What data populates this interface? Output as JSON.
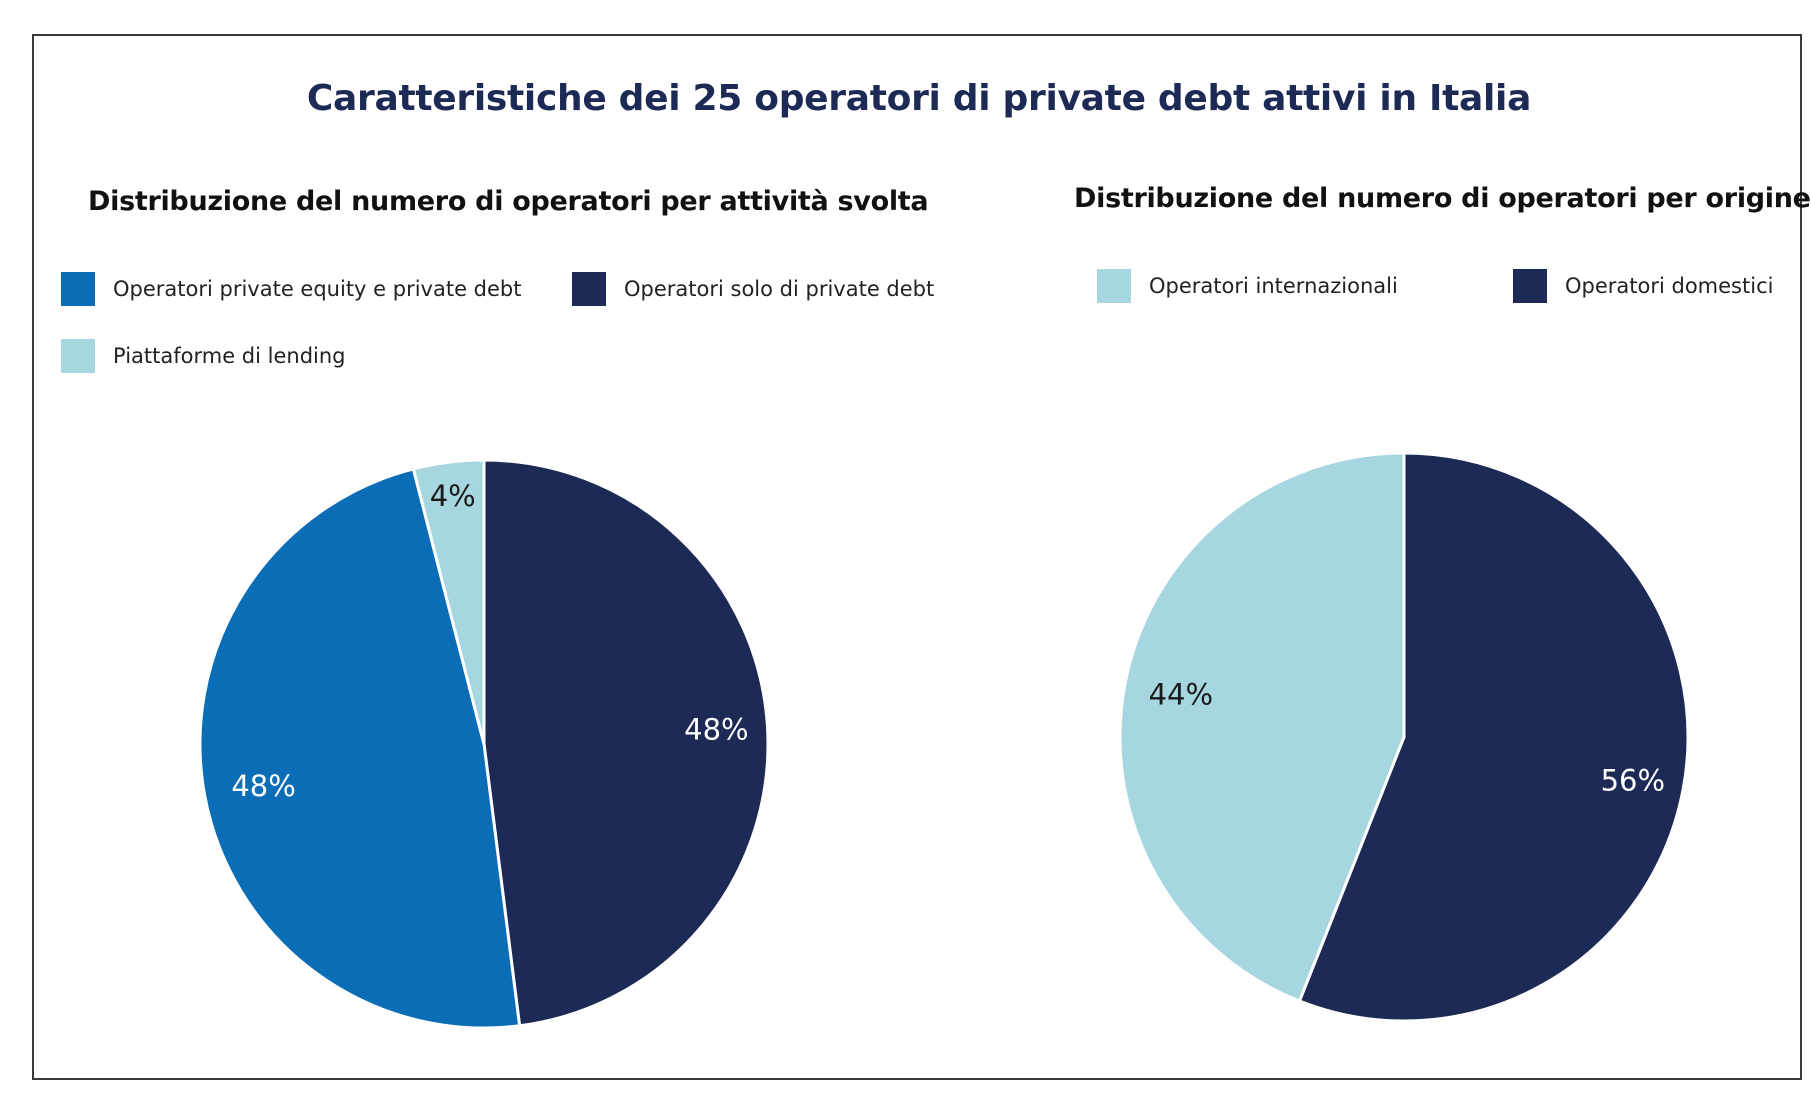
{
  "title": "Caratteristiche dei 25 operatori di private debt attivi in Italia",
  "chart_data": [
    {
      "type": "pie",
      "title": "Distribuzione del numero di operatori per attività svolta",
      "legend_position": "top",
      "slices": [
        {
          "name": "Operatori solo di private debt",
          "value": 48,
          "label": "48%",
          "color": "#1c2a55",
          "label_color": "#ffffff"
        },
        {
          "name": "Operatori private equity e private debt",
          "value": 48,
          "label": "48%",
          "color": "#0a6db5",
          "label_color": "#ffffff"
        },
        {
          "name": "Piattaforme di lending",
          "value": 4,
          "label": "4%",
          "color": "#a6d6df",
          "label_color": "#1a1a1a"
        }
      ],
      "legend": [
        {
          "name": "Operatori private equity e private debt",
          "color": "#0a6db5"
        },
        {
          "name": "Operatori solo di private debt",
          "color": "#1c2a55"
        },
        {
          "name": "Piattaforme di lending",
          "color": "#a6d6df"
        }
      ]
    },
    {
      "type": "pie",
      "title": "Distribuzione del numero di operatori per origine",
      "legend_position": "top",
      "slices": [
        {
          "name": "Operatori domestici",
          "value": 56,
          "label": "56%",
          "color": "#1c2a55",
          "label_color": "#ffffff"
        },
        {
          "name": "Operatori internazionali",
          "value": 44,
          "label": "44%",
          "color": "#a6d6df",
          "label_color": "#1a1a1a"
        }
      ],
      "legend": [
        {
          "name": "Operatori internazionali",
          "color": "#a6d6df"
        },
        {
          "name": "Operatori domestici",
          "color": "#1c2a55"
        }
      ]
    }
  ]
}
